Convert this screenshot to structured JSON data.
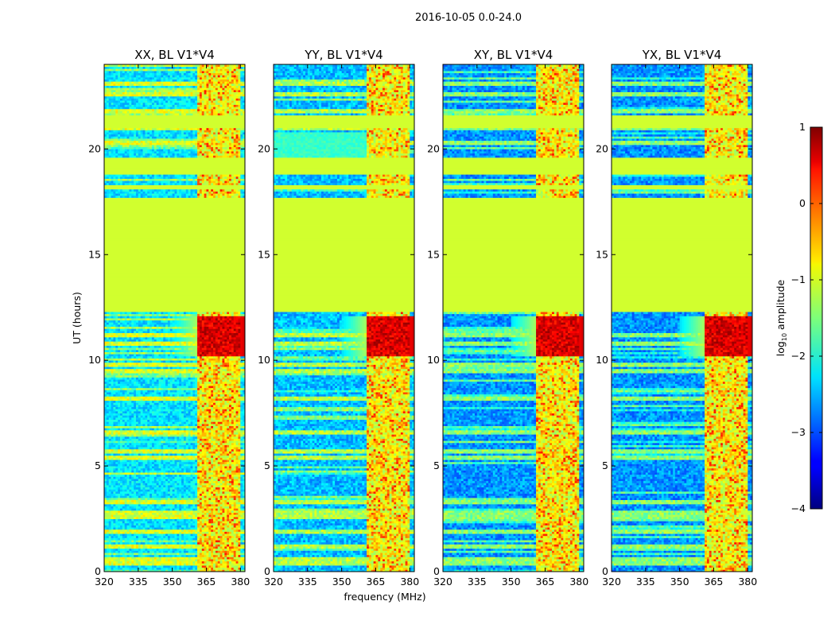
{
  "chart_data": {
    "type": "heatmap",
    "suptitle": "2016-10-05 0.0-24.0",
    "xlabel": "frequency (MHz)",
    "ylabel": "UT (hours)",
    "xlim": [
      320,
      382
    ],
    "ylim": [
      0,
      24
    ],
    "xticks": [
      "320",
      "335",
      "350",
      "365",
      "380"
    ],
    "xtick_values": [
      320,
      335,
      350,
      365,
      380
    ],
    "yticks": [
      "0",
      "5",
      "10",
      "15",
      "20"
    ],
    "ytick_values": [
      0,
      5,
      10,
      15,
      20
    ],
    "colorbar": {
      "label_prefix": "log",
      "label_sub": "10",
      "label_suffix": " amplitude",
      "ticks": [
        "−4",
        "−3",
        "−2",
        "−1",
        "0",
        "1"
      ],
      "tick_values": [
        -4,
        -3,
        -2,
        -1,
        0,
        1
      ],
      "vmin": -4,
      "vmax": 1,
      "colormap": "jet"
    },
    "panels": [
      {
        "title": "XX, BL V1*V4",
        "base_level": -2.6,
        "cross": false
      },
      {
        "title": "YY, BL V1*V4",
        "base_level": -2.8,
        "cross": false
      },
      {
        "title": "XY, BL V1*V4",
        "base_level": -3.0,
        "cross": true
      },
      {
        "title": "YX, BL V1*V4",
        "base_level": -3.0,
        "cross": true
      }
    ],
    "flagged_value": -1.1,
    "flagged_time_ranges": [
      [
        12.35,
        17.7
      ],
      [
        18.1,
        18.25
      ],
      [
        18.85,
        19.55
      ],
      [
        21.05,
        21.6
      ]
    ],
    "rfi_band_mhz": [
      361,
      380
    ],
    "rfi_channels_mhz": [
      [
        361.5,
        365.5
      ],
      [
        366.5,
        370.5
      ],
      [
        371.5,
        375.5
      ],
      [
        376.5,
        380
      ]
    ],
    "strong_rfi_time_range": [
      10.2,
      12.1
    ],
    "horizontal_line_times": [
      0.4,
      0.6,
      1.2,
      1.9,
      2.6,
      2.8,
      3.3,
      5.4,
      5.7,
      6.6,
      8.2,
      9.5,
      9.8,
      10.8,
      11.2,
      20.3,
      21.0,
      21.8,
      22.6,
      23.1
    ]
  }
}
